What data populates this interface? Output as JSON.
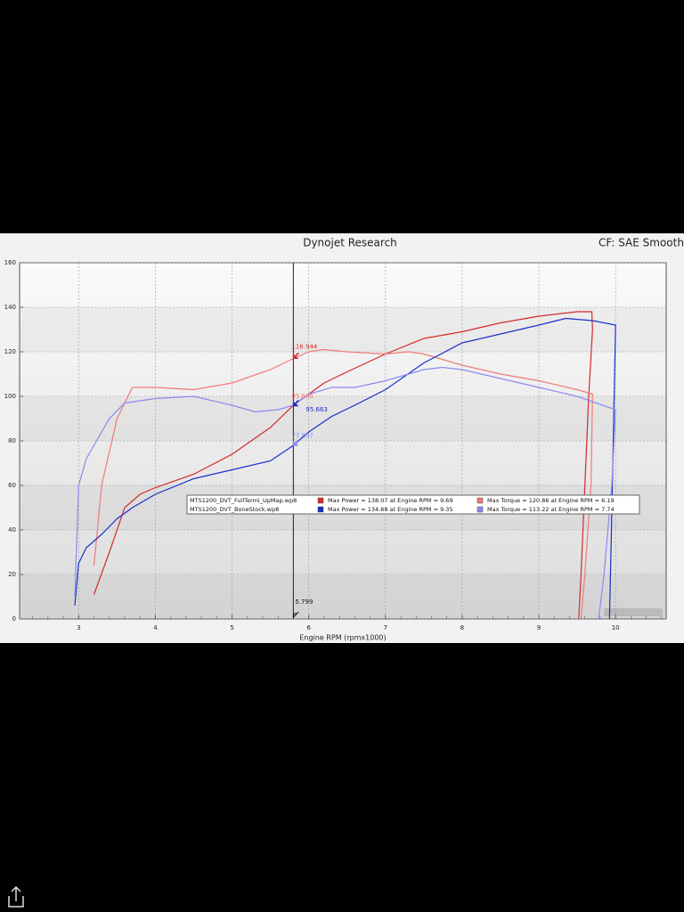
{
  "chart_data": {
    "type": "line",
    "title": "Dynojet Research",
    "subtitle": "CF: SAE Smoothing",
    "x_label": "Engine RPM (rpmx1000)",
    "xlim": [
      2.23,
      10.66
    ],
    "ylim": [
      0,
      160
    ],
    "xticks": [
      3,
      4,
      5,
      6,
      7,
      8,
      9,
      10
    ],
    "yticks": [
      0,
      20,
      40,
      60,
      80,
      100,
      120,
      140,
      160
    ],
    "grid": true,
    "runs": [
      "MTS1200_DVT_FullTermi_UpMap.wp8",
      "MTS1200_DVT_BoneStock.wp8"
    ],
    "series": [
      {
        "name": "Max Power = 138.07 at Engine RPM = 9.69",
        "color": "#d42a2a",
        "x": [
          3.2,
          3.4,
          3.6,
          3.8,
          4.0,
          4.5,
          5.0,
          5.5,
          5.8,
          6.0,
          6.2,
          6.5,
          7.0,
          7.5,
          8.0,
          8.5,
          9.0,
          9.5,
          9.69,
          9.7,
          9.65,
          9.6,
          9.55,
          9.52
        ],
        "values": [
          11,
          30,
          50,
          56,
          59,
          65,
          74,
          86,
          96,
          101,
          106,
          111,
          119,
          126,
          129,
          133,
          136,
          138,
          138,
          130,
          100,
          60,
          20,
          0
        ]
      },
      {
        "name": "Max Torque = 120.86 at Engine RPM = 6.19",
        "color": "#f07a7a",
        "x": [
          3.2,
          3.3,
          3.5,
          3.7,
          4.0,
          4.5,
          5.0,
          5.5,
          5.8,
          6.0,
          6.19,
          6.5,
          7.0,
          7.3,
          7.5,
          8.0,
          8.5,
          9.0,
          9.5,
          9.7,
          9.68,
          9.6,
          9.55
        ],
        "values": [
          24,
          60,
          90,
          104,
          104,
          103,
          106,
          112,
          117,
          120,
          121,
          120,
          119,
          120,
          119,
          114,
          110,
          107,
          103,
          101,
          60,
          20,
          0
        ]
      },
      {
        "name": "Max Power = 134.68 at Engine RPM = 9.35",
        "color": "#1a2fc8",
        "x": [
          2.95,
          3.0,
          3.1,
          3.3,
          3.5,
          3.7,
          4.0,
          4.5,
          5.0,
          5.5,
          5.8,
          6.0,
          6.3,
          6.6,
          7.0,
          7.5,
          8.0,
          8.5,
          9.0,
          9.35,
          9.7,
          10.0,
          9.97,
          9.94,
          9.92
        ],
        "values": [
          6,
          25,
          32,
          38,
          45,
          50,
          56,
          63,
          67,
          71,
          78,
          84,
          91,
          96,
          103,
          115,
          124,
          128,
          132,
          135,
          134,
          132,
          80,
          30,
          0
        ]
      },
      {
        "name": "Max Torque = 113.22 at Engine RPM = 7.74",
        "color": "#8a8af0",
        "x": [
          2.95,
          3.0,
          3.1,
          3.2,
          3.4,
          3.6,
          4.0,
          4.5,
          5.0,
          5.3,
          5.6,
          5.8,
          6.0,
          6.3,
          6.6,
          7.0,
          7.5,
          7.74,
          8.0,
          8.5,
          9.0,
          9.5,
          10.0,
          9.95,
          9.85,
          9.78
        ],
        "values": [
          10,
          60,
          72,
          78,
          90,
          97,
          99,
          100,
          96,
          93,
          94,
          96,
          101,
          104,
          104,
          107,
          112,
          113,
          112,
          108,
          104,
          100,
          94,
          60,
          20,
          0
        ]
      }
    ],
    "cursor": {
      "x": 5.799,
      "values": [
        116.944,
        95.636,
        95.663,
        77.897
      ]
    }
  }
}
